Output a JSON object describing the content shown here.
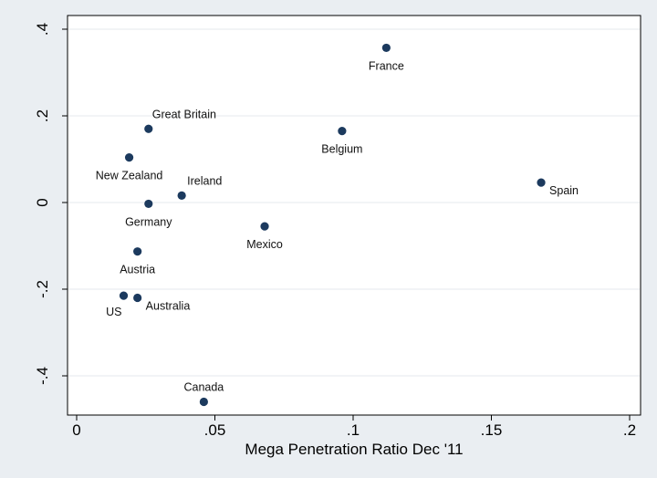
{
  "chart_data": {
    "type": "scatter",
    "title": "",
    "xlabel": "Mega Penetration Ratio Dec '11",
    "ylabel": "",
    "xlim": [
      0,
      0.2
    ],
    "ylim": [
      -0.45,
      0.4
    ],
    "xticks": [
      0,
      0.05,
      0.1,
      0.15,
      0.2
    ],
    "xtick_labels": [
      "0",
      ".05",
      ".1",
      ".15",
      ".2"
    ],
    "yticks": [
      -0.4,
      -0.2,
      0,
      0.2,
      0.4
    ],
    "ytick_labels": [
      "-.4",
      "-.2",
      "0",
      ".2",
      ".4"
    ],
    "grid": true,
    "marker_color": "#1c3a5e",
    "points": [
      {
        "label": "France",
        "x": 0.112,
        "y": 0.357,
        "label_pos": "below"
      },
      {
        "label": "Great Britain",
        "x": 0.026,
        "y": 0.17,
        "label_pos": "above-right"
      },
      {
        "label": "Belgium",
        "x": 0.096,
        "y": 0.165,
        "label_pos": "below"
      },
      {
        "label": "New Zealand",
        "x": 0.019,
        "y": 0.104,
        "label_pos": "below"
      },
      {
        "label": "Spain",
        "x": 0.168,
        "y": 0.046,
        "label_pos": "below-right"
      },
      {
        "label": "Ireland",
        "x": 0.038,
        "y": 0.016,
        "label_pos": "above-right"
      },
      {
        "label": "Germany",
        "x": 0.026,
        "y": -0.003,
        "label_pos": "below"
      },
      {
        "label": "Mexico",
        "x": 0.068,
        "y": -0.055,
        "label_pos": "below"
      },
      {
        "label": "Austria",
        "x": 0.022,
        "y": -0.113,
        "label_pos": "below"
      },
      {
        "label": "US",
        "x": 0.017,
        "y": -0.215,
        "label_pos": "below-left"
      },
      {
        "label": "Australia",
        "x": 0.022,
        "y": -0.22,
        "label_pos": "below-right"
      },
      {
        "label": "Canada",
        "x": 0.046,
        "y": -0.46,
        "label_pos": "above"
      }
    ]
  }
}
